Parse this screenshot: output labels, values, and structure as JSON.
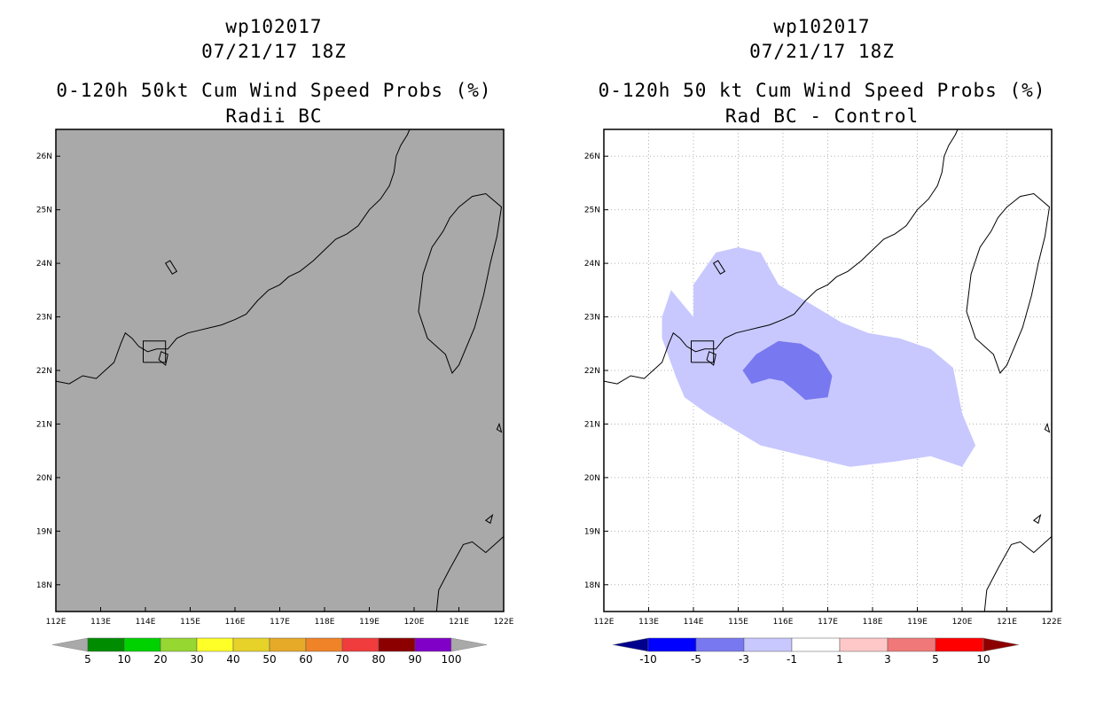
{
  "left_panel": {
    "title_line1": "wp102017",
    "title_line2": "07/21/17 18Z",
    "title_line3": "0-120h 50kt Cum Wind Speed Probs (%)",
    "title_line4": "Radii BC",
    "background_color": "#a9a9a9",
    "colorbar": {
      "labels": [
        "5",
        "10",
        "20",
        "30",
        "40",
        "50",
        "60",
        "70",
        "80",
        "90",
        "100"
      ],
      "colors": [
        "#008c00",
        "#00d200",
        "#96d732",
        "#ffff28",
        "#e6d228",
        "#e6aa28",
        "#f08228",
        "#f03c3c",
        "#8c0000",
        "#8000c8"
      ],
      "end_color": "#a9a9a9"
    }
  },
  "right_panel": {
    "title_line1": "wp102017",
    "title_line2": "07/21/17 18Z",
    "title_line3": "0-120h 50 kt Cum Wind Speed Probs (%)",
    "title_line4": "Rad BC - Control",
    "background_color": "#ffffff",
    "fill_colors": {
      "minus1_to_minus3": "#c8c8ff",
      "minus3_to_minus5": "#7878f0"
    },
    "colorbar": {
      "labels": [
        "-10",
        "-5",
        "-3",
        "-1",
        "1",
        "3",
        "5",
        "10"
      ],
      "colors": [
        "#0000ff",
        "#7878f0",
        "#c8c8ff",
        "#ffffff",
        "#ffc8c8",
        "#f07878",
        "#ff0000"
      ],
      "left_end_color": "#00008c",
      "right_end_color": "#8c0000"
    }
  },
  "map": {
    "lon_labels": [
      "112E",
      "113E",
      "114E",
      "115E",
      "116E",
      "117E",
      "118E",
      "119E",
      "120E",
      "121E",
      "122E"
    ],
    "lat_labels": [
      "18N",
      "19N",
      "20N",
      "21N",
      "22N",
      "23N",
      "24N",
      "25N",
      "26N"
    ],
    "lon_range": [
      112,
      122
    ],
    "lat_range": [
      17.5,
      26.5
    ]
  }
}
